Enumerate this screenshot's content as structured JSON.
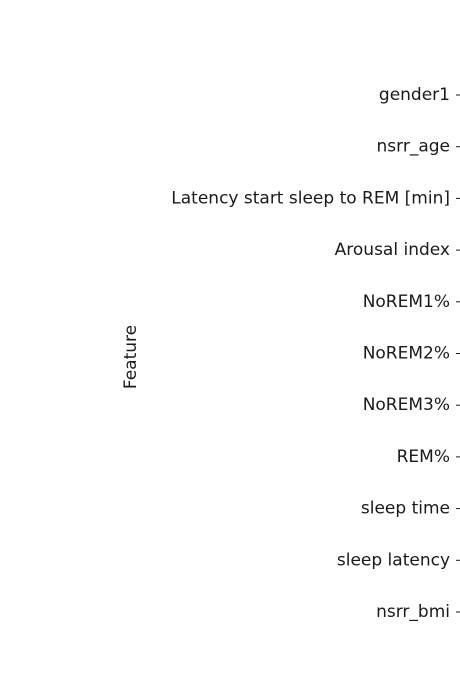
{
  "chart_data": {
    "type": "bar",
    "orientation": "horizontal",
    "title": "",
    "xlabel": "",
    "ylabel": "Feature",
    "categories": [
      "gender1",
      "nsrr_age",
      "Latency start sleep to REM [min]",
      "Arousal index",
      "NoREM1%",
      "NoREM2%",
      "NoREM3%",
      "REM%",
      "sleep time",
      "sleep latency",
      "nsrr_bmi"
    ],
    "grid": false,
    "legend": "none"
  }
}
